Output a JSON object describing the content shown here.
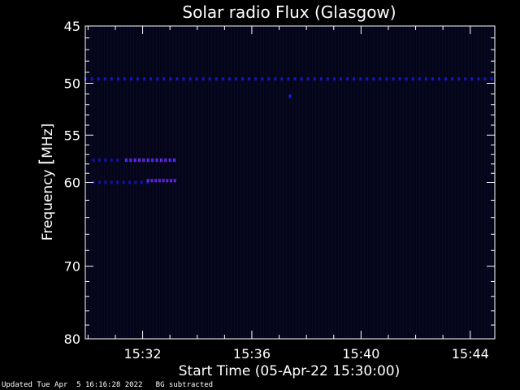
{
  "chart_data": {
    "type": "heatmap",
    "title": "Solar radio Flux (Glasgow)",
    "xlabel": "Start Time (05-Apr-22 15:30:00)",
    "ylabel_prefix": "Frequency ",
    "ylabel_bracket": "[",
    "ylabel_unit": "MHz]",
    "x_range_min": [
      29.9,
      44.9
    ],
    "y_range_mhz": [
      45,
      80
    ],
    "y_scale": "log",
    "x_ticks": [
      {
        "min": 32,
        "label": "15:32"
      },
      {
        "min": 36,
        "label": "15:36"
      },
      {
        "min": 40,
        "label": "15:40"
      },
      {
        "min": 44,
        "label": "15:44"
      }
    ],
    "y_ticks": [
      {
        "mhz": 45,
        "label": "45"
      },
      {
        "mhz": 50,
        "label": "50"
      },
      {
        "mhz": 55,
        "label": "55"
      },
      {
        "mhz": 60,
        "label": "60"
      },
      {
        "mhz": 70,
        "label": "70"
      },
      {
        "mhz": 80,
        "label": "80"
      }
    ],
    "y_minor_ticks": [
      46,
      47,
      48,
      49,
      51,
      52,
      53,
      54,
      56,
      57,
      58,
      59,
      62,
      64,
      66,
      68,
      72,
      74,
      76,
      78
    ],
    "colors": {
      "background": "#06061a",
      "axis": "#ffffff",
      "emission": "#1a1aff",
      "bright": "#7a2aff"
    },
    "emission_bands": [
      {
        "mhz": 49.6,
        "x_from": 29.9,
        "x_to": 44.9,
        "spacing": 0.24,
        "intensity": 0.75
      },
      {
        "mhz": 57.6,
        "x_from": 30.2,
        "x_to": 31.2,
        "spacing": 0.22,
        "intensity": 0.6
      },
      {
        "mhz": 57.6,
        "x_from": 31.4,
        "x_to": 33.3,
        "spacing": 0.16,
        "intensity": 1.0
      },
      {
        "mhz": 60.0,
        "x_from": 30.2,
        "x_to": 32.2,
        "spacing": 0.22,
        "intensity": 0.6
      },
      {
        "mhz": 59.8,
        "x_from": 32.2,
        "x_to": 33.3,
        "spacing": 0.14,
        "intensity": 0.9
      }
    ],
    "emission_points": [
      {
        "min": 37.4,
        "mhz": 51.2
      }
    ]
  },
  "status": {
    "updated": "Updated Tue Apr  5 16:16:28 2022",
    "note": "BG subtracted"
  }
}
